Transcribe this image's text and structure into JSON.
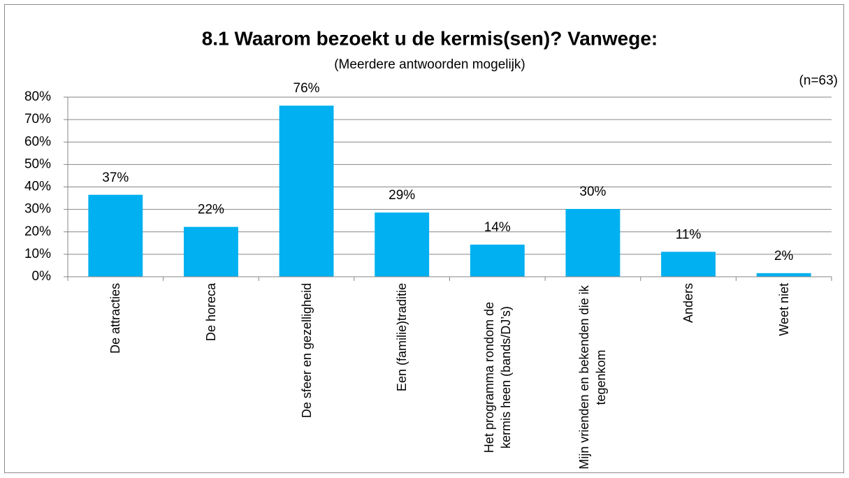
{
  "chart_data": {
    "type": "bar",
    "title": "8.1 Waarom bezoekt u de kermis(sen)? Vanwege:",
    "subtitle": "(Meerdere antwoorden mogelijk)",
    "annotation": "(n=63)",
    "categories": [
      "De attracties",
      "De horeca",
      "De sfeer en gezelligheid",
      "Een (familie)traditie",
      "Het programma rondom de kermis heen (bands/DJ’s)",
      "Mijn vrienden en bekenden die ik tegenkom",
      "Anders",
      "Weet niet"
    ],
    "values": [
      36.5,
      22.2,
      76.2,
      28.6,
      14.3,
      30.2,
      11.1,
      1.6
    ],
    "value_labels": [
      "37%",
      "22%",
      "76%",
      "29%",
      "14%",
      "30%",
      "11%",
      "2%"
    ],
    "color": "#00b0f0",
    "ylim": [
      0,
      80
    ],
    "yticks": [
      {
        "value": 0,
        "label": "0%"
      },
      {
        "value": 10,
        "label": "10%"
      },
      {
        "value": 20,
        "label": "20%"
      },
      {
        "value": 30,
        "label": "30%"
      },
      {
        "value": 40,
        "label": "40%"
      },
      {
        "value": 50,
        "label": "50%"
      },
      {
        "value": 60,
        "label": "60%"
      },
      {
        "value": 70,
        "label": "70%"
      },
      {
        "value": 80,
        "label": "80%"
      }
    ],
    "grid": true
  }
}
